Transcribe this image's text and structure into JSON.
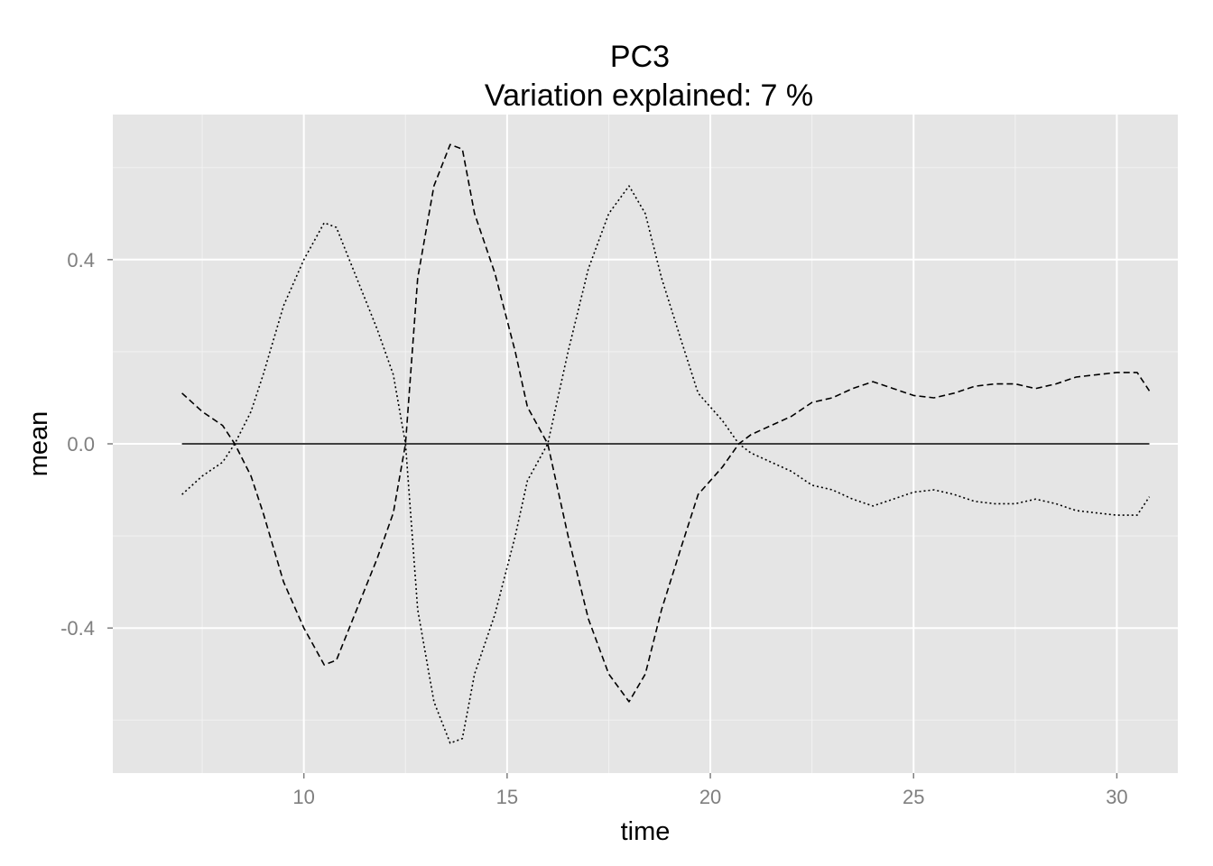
{
  "chart_data": {
    "type": "line",
    "title": "PC3",
    "subtitle": "Variation explained: 7 %",
    "xlabel": "time",
    "ylabel": "mean",
    "xlim": [
      5.3,
      31.5
    ],
    "ylim": [
      -0.715,
      0.715
    ],
    "x_ticks": [
      10,
      15,
      20,
      25,
      30
    ],
    "x_tick_labels": [
      "10",
      "15",
      "20",
      "25",
      "30"
    ],
    "y_ticks": [
      0.4,
      0.0,
      -0.4
    ],
    "y_tick_labels": [
      "0.4",
      "0.0",
      "-0.4"
    ],
    "grid": true,
    "background": "#e5e5e5",
    "gridline_color": "#ffffff",
    "series": [
      {
        "style": "solid",
        "points": [
          [
            7.0,
            0.0
          ],
          [
            30.8,
            0.0
          ]
        ]
      },
      {
        "style": "dashed",
        "points": [
          [
            7.0,
            0.11
          ],
          [
            7.5,
            0.07
          ],
          [
            8.0,
            0.04
          ],
          [
            8.3,
            0.0
          ],
          [
            8.7,
            -0.07
          ],
          [
            9.0,
            -0.15
          ],
          [
            9.5,
            -0.3
          ],
          [
            10.0,
            -0.4
          ],
          [
            10.5,
            -0.48
          ],
          [
            10.8,
            -0.47
          ],
          [
            11.3,
            -0.36
          ],
          [
            11.8,
            -0.25
          ],
          [
            12.2,
            -0.15
          ],
          [
            12.5,
            0.0
          ],
          [
            12.8,
            0.36
          ],
          [
            13.2,
            0.56
          ],
          [
            13.6,
            0.65
          ],
          [
            13.9,
            0.64
          ],
          [
            14.2,
            0.5
          ],
          [
            14.7,
            0.37
          ],
          [
            15.2,
            0.2
          ],
          [
            15.5,
            0.08
          ],
          [
            16.0,
            0.0
          ],
          [
            16.5,
            -0.2
          ],
          [
            17.0,
            -0.38
          ],
          [
            17.5,
            -0.5
          ],
          [
            18.0,
            -0.56
          ],
          [
            18.4,
            -0.5
          ],
          [
            18.8,
            -0.36
          ],
          [
            19.3,
            -0.22
          ],
          [
            19.7,
            -0.11
          ],
          [
            20.3,
            -0.05
          ],
          [
            20.7,
            0.0
          ],
          [
            21.0,
            0.02
          ],
          [
            21.5,
            0.04
          ],
          [
            22.0,
            0.06
          ],
          [
            22.5,
            0.09
          ],
          [
            23.0,
            0.1
          ],
          [
            23.5,
            0.12
          ],
          [
            24.0,
            0.135
          ],
          [
            24.5,
            0.12
          ],
          [
            25.0,
            0.105
          ],
          [
            25.5,
            0.1
          ],
          [
            26.0,
            0.11
          ],
          [
            26.5,
            0.125
          ],
          [
            27.0,
            0.13
          ],
          [
            27.5,
            0.13
          ],
          [
            28.0,
            0.12
          ],
          [
            28.5,
            0.13
          ],
          [
            29.0,
            0.145
          ],
          [
            29.5,
            0.15
          ],
          [
            30.0,
            0.155
          ],
          [
            30.5,
            0.155
          ],
          [
            30.8,
            0.115
          ]
        ]
      },
      {
        "style": "dotted",
        "points": [
          [
            7.0,
            -0.11
          ],
          [
            7.5,
            -0.07
          ],
          [
            8.0,
            -0.04
          ],
          [
            8.3,
            0.0
          ],
          [
            8.7,
            0.07
          ],
          [
            9.0,
            0.15
          ],
          [
            9.5,
            0.3
          ],
          [
            10.0,
            0.4
          ],
          [
            10.5,
            0.48
          ],
          [
            10.8,
            0.47
          ],
          [
            11.3,
            0.36
          ],
          [
            11.8,
            0.25
          ],
          [
            12.2,
            0.15
          ],
          [
            12.5,
            0.0
          ],
          [
            12.8,
            -0.36
          ],
          [
            13.2,
            -0.56
          ],
          [
            13.6,
            -0.65
          ],
          [
            13.9,
            -0.64
          ],
          [
            14.2,
            -0.5
          ],
          [
            14.7,
            -0.37
          ],
          [
            15.2,
            -0.2
          ],
          [
            15.5,
            -0.08
          ],
          [
            16.0,
            0.0
          ],
          [
            16.5,
            0.2
          ],
          [
            17.0,
            0.38
          ],
          [
            17.5,
            0.5
          ],
          [
            18.0,
            0.56
          ],
          [
            18.4,
            0.5
          ],
          [
            18.8,
            0.36
          ],
          [
            19.3,
            0.22
          ],
          [
            19.7,
            0.11
          ],
          [
            20.3,
            0.05
          ],
          [
            20.7,
            0.0
          ],
          [
            21.0,
            -0.02
          ],
          [
            21.5,
            -0.04
          ],
          [
            22.0,
            -0.06
          ],
          [
            22.5,
            -0.09
          ],
          [
            23.0,
            -0.1
          ],
          [
            23.5,
            -0.12
          ],
          [
            24.0,
            -0.135
          ],
          [
            24.5,
            -0.12
          ],
          [
            25.0,
            -0.105
          ],
          [
            25.5,
            -0.1
          ],
          [
            26.0,
            -0.11
          ],
          [
            26.5,
            -0.125
          ],
          [
            27.0,
            -0.13
          ],
          [
            27.5,
            -0.13
          ],
          [
            28.0,
            -0.12
          ],
          [
            28.5,
            -0.13
          ],
          [
            29.0,
            -0.145
          ],
          [
            29.5,
            -0.15
          ],
          [
            30.0,
            -0.155
          ],
          [
            30.5,
            -0.155
          ],
          [
            30.8,
            -0.115
          ]
        ]
      }
    ]
  }
}
